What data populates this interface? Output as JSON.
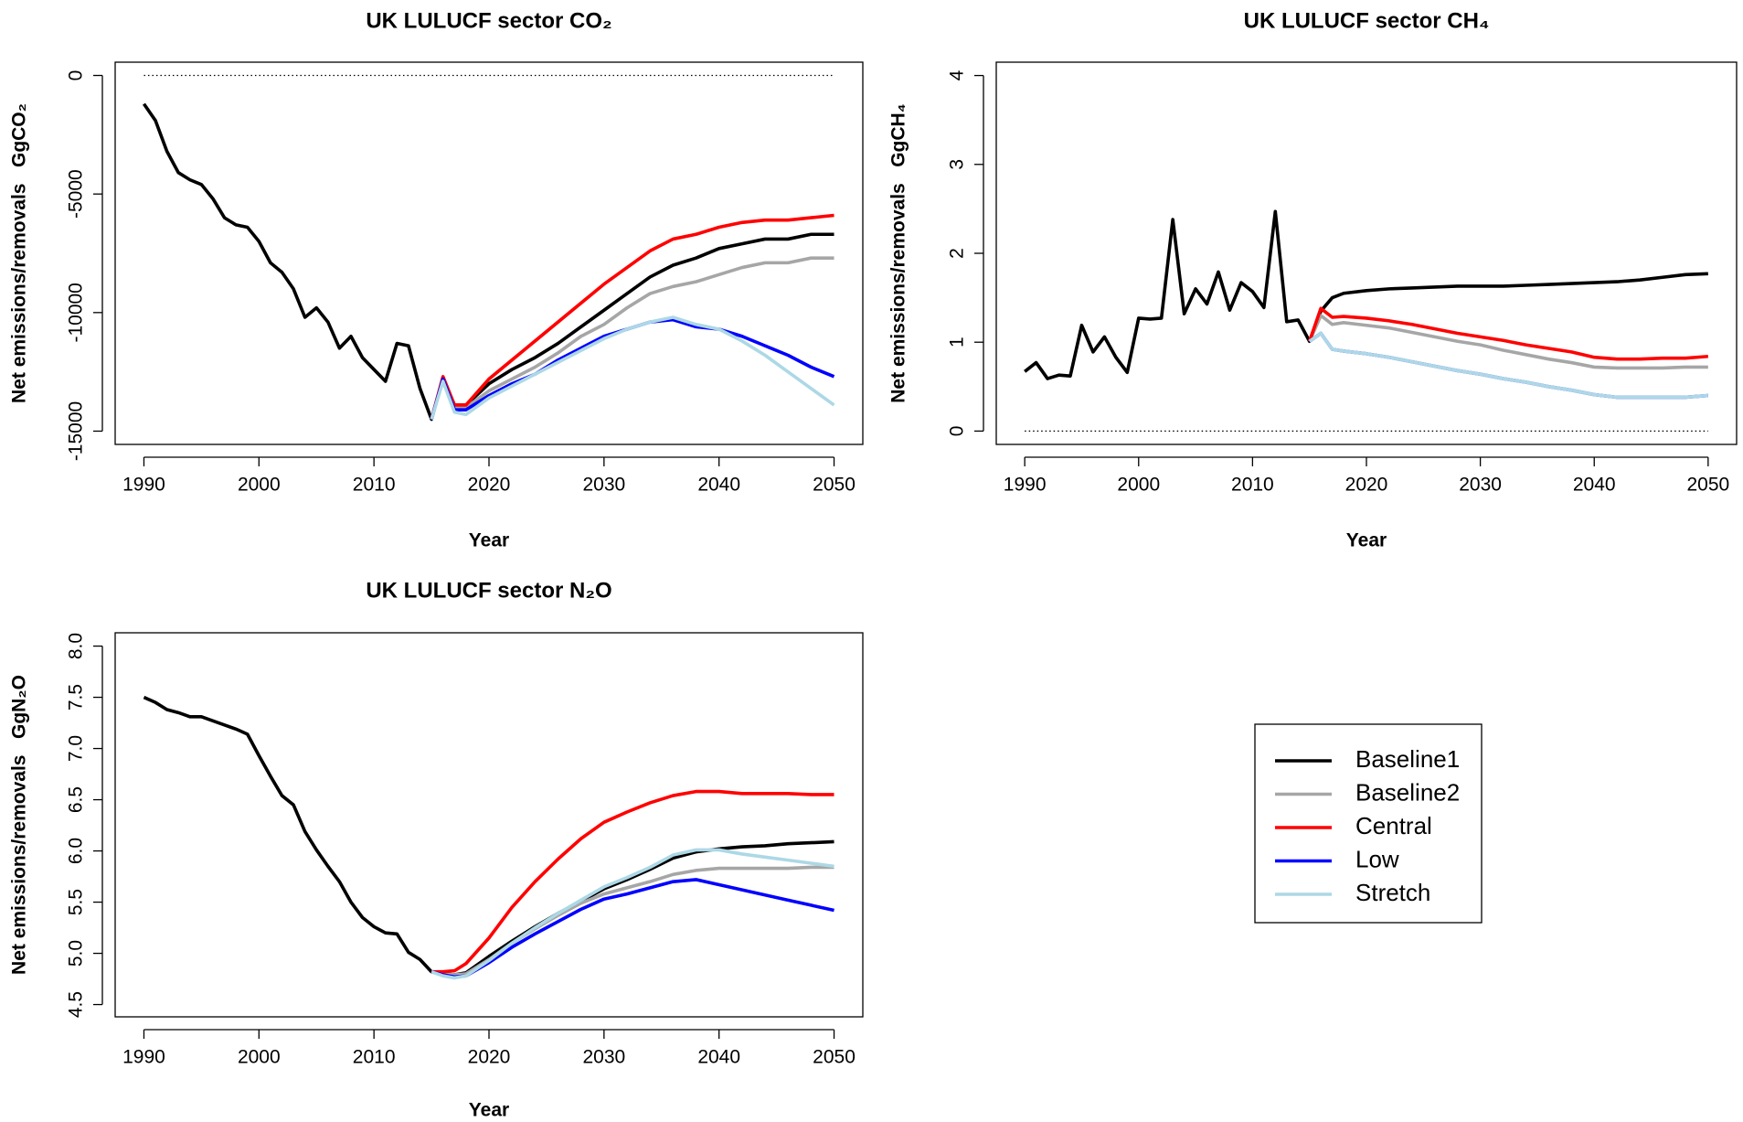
{
  "chart_data": [
    {
      "type": "line",
      "title": "UK LULUCF sector CO₂",
      "x_label": "Year",
      "y_label": "Net emissions/removals   GgCO₂",
      "xlim": [
        1987.5,
        2052.5
      ],
      "xticks": [
        1990,
        2000,
        2010,
        2020,
        2030,
        2040,
        2050
      ],
      "ylim": [
        -15560,
        560
      ],
      "yticks": [
        -15000,
        -10000,
        -5000,
        0
      ],
      "hline": 0,
      "series": [
        {
          "name": "Baseline1",
          "color": "#000000",
          "x": [
            1990,
            1991,
            1992,
            1993,
            1994,
            1995,
            1996,
            1997,
            1998,
            1999,
            2000,
            2001,
            2002,
            2003,
            2004,
            2005,
            2006,
            2007,
            2008,
            2009,
            2010,
            2011,
            2012,
            2013,
            2014,
            2015,
            2016,
            2017,
            2018,
            2020,
            2022,
            2024,
            2026,
            2028,
            2030,
            2032,
            2034,
            2036,
            2038,
            2040,
            2042,
            2044,
            2046,
            2048,
            2050
          ],
          "values": [
            -1200,
            -1900,
            -3200,
            -4100,
            -4400,
            -4600,
            -5200,
            -6000,
            -6300,
            -6400,
            -7000,
            -7900,
            -8300,
            -9000,
            -10200,
            -9800,
            -10400,
            -11500,
            -11000,
            -11900,
            -12400,
            -12900,
            -11300,
            -11400,
            -13200,
            -14500,
            -12800,
            -13900,
            -13900,
            -13000,
            -12400,
            -11900,
            -11300,
            -10600,
            -9900,
            -9200,
            -8500,
            -8000,
            -7700,
            -7300,
            -7100,
            -6900,
            -6900,
            -6700,
            -6700
          ]
        },
        {
          "name": "Baseline2",
          "color": "#a6a6a6",
          "x": [
            2015,
            2016,
            2017,
            2018,
            2020,
            2022,
            2024,
            2026,
            2028,
            2030,
            2032,
            2034,
            2036,
            2038,
            2040,
            2042,
            2044,
            2046,
            2048,
            2050
          ],
          "values": [
            -14500,
            -12800,
            -14000,
            -14000,
            -13300,
            -12800,
            -12300,
            -11700,
            -11000,
            -10500,
            -9800,
            -9200,
            -8900,
            -8700,
            -8400,
            -8100,
            -7900,
            -7900,
            -7700,
            -7700
          ]
        },
        {
          "name": "Central",
          "color": "#ff0000",
          "x": [
            2015,
            2016,
            2017,
            2018,
            2020,
            2022,
            2024,
            2026,
            2028,
            2030,
            2032,
            2034,
            2036,
            2038,
            2040,
            2042,
            2044,
            2046,
            2048,
            2050
          ],
          "values": [
            -14500,
            -12700,
            -13900,
            -13900,
            -12800,
            -12000,
            -11200,
            -10400,
            -9600,
            -8800,
            -8100,
            -7400,
            -6900,
            -6700,
            -6400,
            -6200,
            -6100,
            -6100,
            -6000,
            -5900
          ]
        },
        {
          "name": "Low",
          "color": "#0000ff",
          "x": [
            2015,
            2016,
            2017,
            2018,
            2020,
            2022,
            2024,
            2026,
            2028,
            2030,
            2032,
            2034,
            2036,
            2038,
            2040,
            2042,
            2044,
            2046,
            2048,
            2050
          ],
          "values": [
            -14500,
            -12800,
            -14100,
            -14100,
            -13500,
            -13000,
            -12600,
            -12000,
            -11500,
            -11000,
            -10700,
            -10400,
            -10300,
            -10600,
            -10700,
            -11000,
            -11400,
            -11800,
            -12300,
            -12700
          ]
        },
        {
          "name": "Stretch",
          "color": "#add8e6",
          "x": [
            2015,
            2016,
            2017,
            2018,
            2020,
            2022,
            2024,
            2026,
            2028,
            2030,
            2032,
            2034,
            2036,
            2038,
            2040,
            2042,
            2044,
            2046,
            2048,
            2050
          ],
          "values": [
            -14500,
            -12900,
            -14200,
            -14300,
            -13600,
            -13100,
            -12600,
            -12100,
            -11600,
            -11100,
            -10700,
            -10400,
            -10200,
            -10500,
            -10700,
            -11200,
            -11800,
            -12500,
            -13200,
            -13900
          ]
        }
      ]
    },
    {
      "type": "line",
      "title": "UK LULUCF sector CH₄",
      "x_label": "Year",
      "y_label": "Net emissions/removals   GgCH₄",
      "xlim": [
        1987.5,
        2052.5
      ],
      "xticks": [
        1990,
        2000,
        2010,
        2020,
        2030,
        2040,
        2050
      ],
      "ylim": [
        -0.15,
        4.15
      ],
      "yticks": [
        0,
        1,
        2,
        3,
        4
      ],
      "hline": 0,
      "series": [
        {
          "name": "Baseline1",
          "color": "#000000",
          "x": [
            1990,
            1991,
            1992,
            1993,
            1994,
            1995,
            1996,
            1997,
            1998,
            1999,
            2000,
            2001,
            2002,
            2003,
            2004,
            2005,
            2006,
            2007,
            2008,
            2009,
            2010,
            2011,
            2012,
            2013,
            2014,
            2015,
            2016,
            2017,
            2018,
            2020,
            2022,
            2024,
            2026,
            2028,
            2030,
            2032,
            2034,
            2036,
            2038,
            2040,
            2042,
            2044,
            2046,
            2048,
            2050
          ],
          "values": [
            0.67,
            0.77,
            0.59,
            0.63,
            0.62,
            1.19,
            0.89,
            1.06,
            0.83,
            0.66,
            1.27,
            1.26,
            1.27,
            2.38,
            1.32,
            1.6,
            1.43,
            1.79,
            1.36,
            1.67,
            1.57,
            1.39,
            2.47,
            1.23,
            1.25,
            1.01,
            1.35,
            1.5,
            1.55,
            1.58,
            1.6,
            1.61,
            1.62,
            1.63,
            1.63,
            1.63,
            1.64,
            1.65,
            1.66,
            1.67,
            1.68,
            1.7,
            1.73,
            1.76,
            1.77
          ]
        },
        {
          "name": "Baseline2",
          "color": "#a6a6a6",
          "x": [
            2015,
            2016,
            2017,
            2018,
            2020,
            2022,
            2024,
            2026,
            2028,
            2030,
            2032,
            2034,
            2036,
            2038,
            2040,
            2042,
            2044,
            2046,
            2048,
            2050
          ],
          "values": [
            1.01,
            1.3,
            1.2,
            1.22,
            1.19,
            1.16,
            1.11,
            1.06,
            1.01,
            0.97,
            0.91,
            0.86,
            0.81,
            0.77,
            0.72,
            0.71,
            0.71,
            0.71,
            0.72,
            0.72
          ]
        },
        {
          "name": "Central",
          "color": "#ff0000",
          "x": [
            2015,
            2016,
            2017,
            2018,
            2020,
            2022,
            2024,
            2026,
            2028,
            2030,
            2032,
            2034,
            2036,
            2038,
            2040,
            2042,
            2044,
            2046,
            2048,
            2050
          ],
          "values": [
            1.01,
            1.38,
            1.28,
            1.29,
            1.27,
            1.24,
            1.2,
            1.15,
            1.1,
            1.06,
            1.02,
            0.97,
            0.93,
            0.89,
            0.83,
            0.81,
            0.81,
            0.82,
            0.82,
            0.84
          ]
        },
        {
          "name": "Low",
          "color": "#0000ff",
          "x": [
            2015,
            2016,
            2017,
            2018,
            2020,
            2022,
            2024,
            2026,
            2028,
            2030,
            2032,
            2034,
            2036,
            2038,
            2040,
            2042,
            2044,
            2046,
            2048,
            2050
          ],
          "values": [
            1.01,
            1.1,
            0.92,
            0.9,
            0.87,
            0.83,
            0.78,
            0.73,
            0.68,
            0.64,
            0.59,
            0.55,
            0.5,
            0.46,
            0.41,
            0.38,
            0.38,
            0.38,
            0.38,
            0.4
          ]
        },
        {
          "name": "Stretch",
          "color": "#add8e6",
          "x": [
            2015,
            2016,
            2017,
            2018,
            2020,
            2022,
            2024,
            2026,
            2028,
            2030,
            2032,
            2034,
            2036,
            2038,
            2040,
            2042,
            2044,
            2046,
            2048,
            2050
          ],
          "values": [
            1.01,
            1.1,
            0.92,
            0.9,
            0.87,
            0.83,
            0.78,
            0.73,
            0.68,
            0.64,
            0.59,
            0.55,
            0.5,
            0.46,
            0.41,
            0.38,
            0.38,
            0.38,
            0.38,
            0.4
          ]
        }
      ]
    },
    {
      "type": "line",
      "title": "UK LULUCF sector N₂O",
      "x_label": "Year",
      "y_label": "Net emissions/removals   GgN₂O",
      "xlim": [
        1987.5,
        2052.5
      ],
      "xticks": [
        1990,
        2000,
        2010,
        2020,
        2030,
        2040,
        2050
      ],
      "ylim": [
        4.38,
        8.13
      ],
      "yticks": [
        4.5,
        {
          "value": 5,
          "label": "5.0"
        },
        5.5,
        {
          "value": 6,
          "label": "6.0"
        },
        6.5,
        {
          "value": 7,
          "label": "7.0"
        },
        7.5,
        {
          "value": 8,
          "label": "8.0"
        }
      ],
      "series": [
        {
          "name": "Baseline1",
          "color": "#000000",
          "x": [
            1990,
            1991,
            1992,
            1993,
            1994,
            1995,
            1996,
            1997,
            1998,
            1999,
            2000,
            2001,
            2002,
            2003,
            2004,
            2005,
            2006,
            2007,
            2008,
            2009,
            2010,
            2011,
            2012,
            2013,
            2014,
            2015,
            2016,
            2017,
            2018,
            2020,
            2022,
            2024,
            2026,
            2028,
            2030,
            2032,
            2034,
            2036,
            2038,
            2040,
            2042,
            2044,
            2046,
            2048,
            2050
          ],
          "values": [
            7.5,
            7.45,
            7.38,
            7.35,
            7.31,
            7.31,
            7.27,
            7.23,
            7.19,
            7.14,
            6.93,
            6.73,
            6.54,
            6.45,
            6.19,
            6.01,
            5.85,
            5.7,
            5.5,
            5.35,
            5.26,
            5.2,
            5.19,
            5.01,
            4.94,
            4.82,
            4.8,
            4.79,
            4.81,
            4.97,
            5.12,
            5.26,
            5.39,
            5.51,
            5.63,
            5.72,
            5.82,
            5.93,
            5.99,
            6.02,
            6.04,
            6.05,
            6.07,
            6.08,
            6.09
          ]
        },
        {
          "name": "Baseline2",
          "color": "#a6a6a6",
          "x": [
            2015,
            2016,
            2017,
            2018,
            2020,
            2022,
            2024,
            2026,
            2028,
            2030,
            2032,
            2034,
            2036,
            2038,
            2040,
            2042,
            2044,
            2046,
            2048,
            2050
          ],
          "values": [
            4.82,
            4.8,
            4.79,
            4.8,
            4.94,
            5.1,
            5.24,
            5.37,
            5.49,
            5.58,
            5.64,
            5.7,
            5.77,
            5.81,
            5.83,
            5.83,
            5.83,
            5.83,
            5.84,
            5.84
          ]
        },
        {
          "name": "Central",
          "color": "#ff0000",
          "x": [
            2015,
            2016,
            2017,
            2018,
            2020,
            2022,
            2024,
            2026,
            2028,
            2030,
            2032,
            2034,
            2036,
            2038,
            2040,
            2042,
            2044,
            2046,
            2048,
            2050
          ],
          "values": [
            4.82,
            4.82,
            4.83,
            4.9,
            5.15,
            5.45,
            5.7,
            5.92,
            6.12,
            6.28,
            6.38,
            6.47,
            6.54,
            6.58,
            6.58,
            6.56,
            6.56,
            6.56,
            6.55,
            6.55
          ]
        },
        {
          "name": "Low",
          "color": "#0000ff",
          "x": [
            2015,
            2016,
            2017,
            2018,
            2020,
            2022,
            2024,
            2026,
            2028,
            2030,
            2032,
            2034,
            2036,
            2038,
            2040,
            2042,
            2044,
            2046,
            2048,
            2050
          ],
          "values": [
            4.82,
            4.79,
            4.77,
            4.78,
            4.91,
            5.06,
            5.19,
            5.31,
            5.43,
            5.53,
            5.58,
            5.64,
            5.7,
            5.72,
            5.67,
            5.62,
            5.57,
            5.52,
            5.47,
            5.42
          ]
        },
        {
          "name": "Stretch",
          "color": "#add8e6",
          "x": [
            2015,
            2016,
            2017,
            2018,
            2020,
            2022,
            2024,
            2026,
            2028,
            2030,
            2032,
            2034,
            2036,
            2038,
            2040,
            2042,
            2044,
            2046,
            2048,
            2050
          ],
          "values": [
            4.82,
            4.78,
            4.76,
            4.78,
            4.93,
            5.1,
            5.25,
            5.39,
            5.52,
            5.65,
            5.74,
            5.84,
            5.96,
            6.01,
            6.01,
            5.97,
            5.94,
            5.91,
            5.88,
            5.85
          ]
        }
      ]
    }
  ]
}
